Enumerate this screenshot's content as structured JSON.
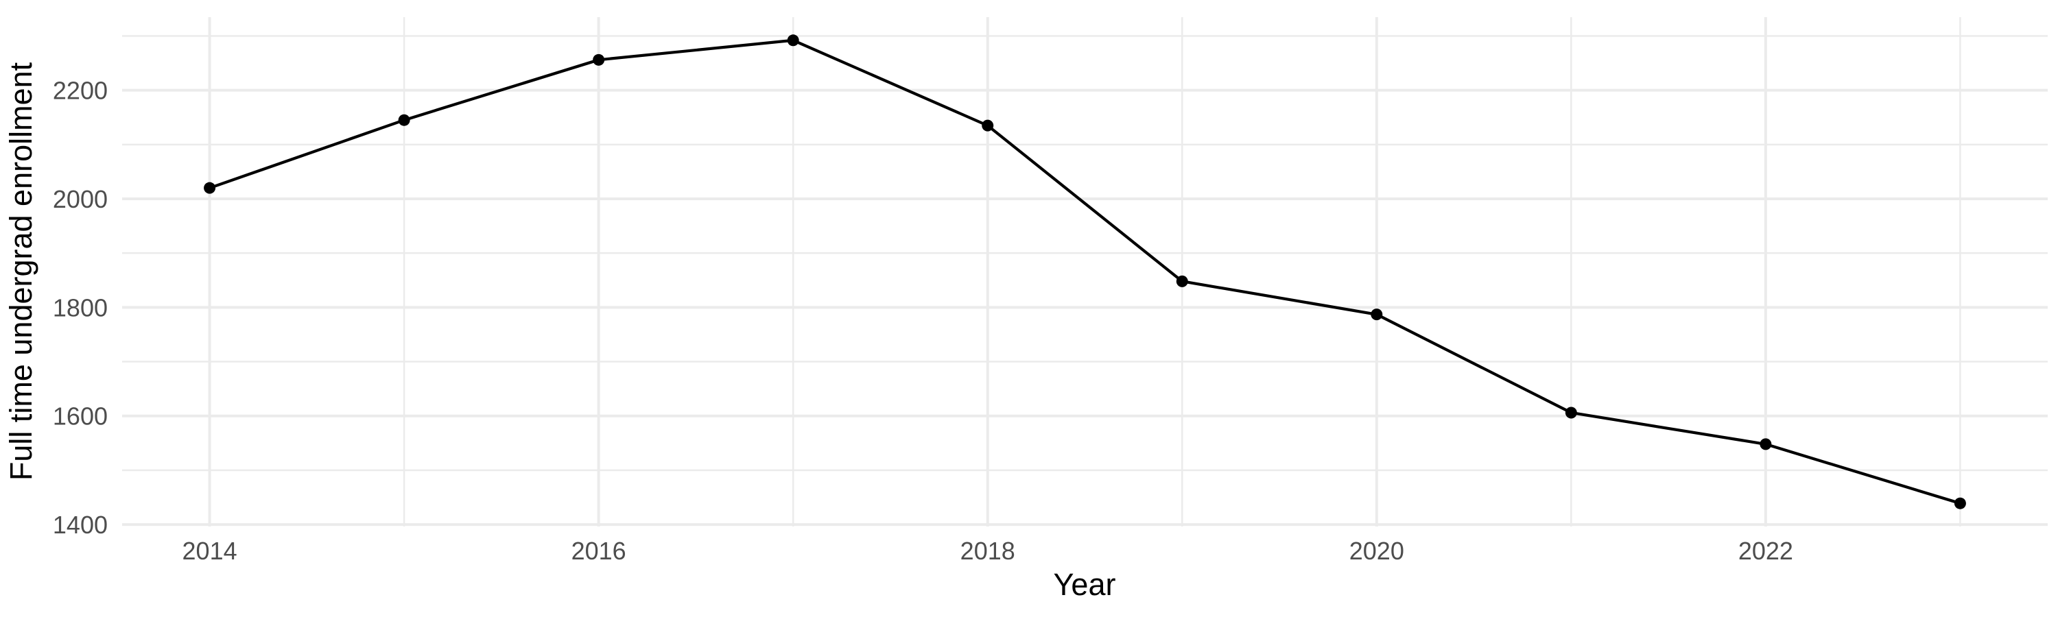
{
  "figure": {
    "background": "#FFFFFF"
  },
  "chart_data": {
    "type": "line",
    "title": "",
    "xlabel": "Year",
    "ylabel": "Full time undergrad enrollment",
    "series": [
      {
        "name": "Full time undergrad enrollment",
        "x": [
          2014,
          2015,
          2016,
          2017,
          2018,
          2019,
          2020,
          2021,
          2022,
          2023
        ],
        "y": [
          2020,
          2145,
          2256,
          2292,
          2135,
          1848,
          1787,
          1606,
          1548,
          1439
        ]
      }
    ],
    "xlim": [
      2013.55,
      2023.45
    ],
    "ylim": [
      1396.3,
      2334.7
    ],
    "x_ticks": {
      "values": [
        2014,
        2016,
        2018,
        2020,
        2022
      ],
      "labels": [
        "2014",
        "2016",
        "2018",
        "2020",
        "2022"
      ]
    },
    "x_minor_ticks": [
      2015,
      2017,
      2019,
      2021,
      2023
    ],
    "y_ticks": {
      "values": [
        1400,
        1600,
        1800,
        2000,
        2200
      ],
      "labels": [
        "1400",
        "1600",
        "1800",
        "2000",
        "2200"
      ]
    },
    "y_minor_ticks": [
      1500,
      1700,
      1900,
      2100,
      2300
    ],
    "grid": "major+minor",
    "legend": "none",
    "point_marker": "filled-circle",
    "colors": {
      "line": "#000000",
      "point": "#000000",
      "grid": "#EBEBEB",
      "tick_label": "#4D4D4D",
      "axis_title": "#000000",
      "background": "#FFFFFF"
    }
  }
}
